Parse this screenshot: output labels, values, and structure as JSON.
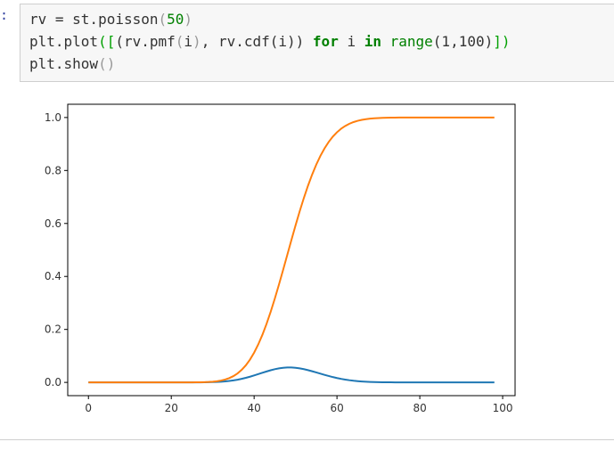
{
  "cell": {
    "prompt": ":",
    "lines": [
      [
        {
          "t": "rv = st.poisson",
          "c": ""
        },
        {
          "t": "(",
          "c": "paren"
        },
        {
          "t": "50",
          "c": "num"
        },
        {
          "t": ")",
          "c": "paren"
        }
      ],
      [
        {
          "t": "plt.plot",
          "c": ""
        },
        {
          "t": "([",
          "c": "bracket"
        },
        {
          "t": "(rv.pmf",
          "c": ""
        },
        {
          "t": "(",
          "c": "paren"
        },
        {
          "t": "i",
          "c": ""
        },
        {
          "t": ")",
          "c": "paren"
        },
        {
          "t": ", rv.cdf(i)) ",
          "c": ""
        },
        {
          "t": "for",
          "c": "kw"
        },
        {
          "t": " i ",
          "c": ""
        },
        {
          "t": "in",
          "c": "kw"
        },
        {
          "t": " range",
          "c": "num"
        },
        {
          "t": "(1,100)",
          "c": ""
        },
        {
          "t": "])",
          "c": "bracket"
        }
      ],
      [
        {
          "t": "plt.show",
          "c": ""
        },
        {
          "t": "()",
          "c": "paren"
        }
      ]
    ]
  },
  "chart_data": {
    "type": "line",
    "distribution": "poisson",
    "mu": 50,
    "x_range": [
      1,
      99
    ],
    "xlim": [
      -5,
      103
    ],
    "ylim": [
      -0.05,
      1.05
    ],
    "xticks": [
      0,
      20,
      40,
      60,
      80,
      100
    ],
    "yticks": [
      0.0,
      0.2,
      0.4,
      0.6,
      0.8,
      1.0
    ],
    "grid": false,
    "legend": "none",
    "series": [
      {
        "role": "pmf",
        "color": "#1f77b4"
      },
      {
        "role": "cdf",
        "color": "#ff7f0e"
      }
    ]
  }
}
